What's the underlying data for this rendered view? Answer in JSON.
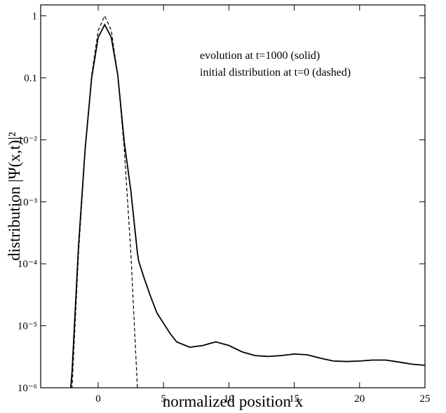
{
  "chart_data": {
    "type": "line",
    "xlabel": "normalized position x",
    "ylabel": "distribution |Ψ(x,t)|²",
    "annotations": [
      "evolution at t=1000 (solid)",
      "initial distribution at t=0 (dashed)"
    ],
    "log_y": true,
    "xlim": [
      -4.4,
      25
    ],
    "ylim": [
      1e-06,
      1.5
    ],
    "xticks": [
      0,
      5,
      10,
      15,
      20,
      25
    ],
    "yticks": [
      {
        "value": 1e-06,
        "label": "10⁻⁶"
      },
      {
        "value": 1e-05,
        "label": "10⁻⁵"
      },
      {
        "value": 0.0001,
        "label": "10⁻⁴"
      },
      {
        "value": 0.001,
        "label": "10⁻³"
      },
      {
        "value": 0.01,
        "label": "10⁻²"
      },
      0.1,
      1
    ],
    "x": [
      -2.1,
      -2,
      -1.5,
      -1,
      -0.5,
      0,
      0.5,
      1,
      1.5,
      2,
      2.5,
      3,
      3.1,
      3.5,
      4,
      4.5,
      5,
      5.5,
      6,
      7,
      8,
      9,
      10,
      11,
      12,
      13,
      14,
      15,
      16,
      17,
      18,
      19,
      20,
      21,
      22,
      23,
      24,
      25
    ],
    "series": [
      {
        "name": "evolution at t=1000",
        "color": "#000000",
        "dash": false,
        "values": [
          1e-06,
          1.8e-06,
          0.0002,
          0.007,
          0.1,
          0.45,
          0.72,
          0.45,
          0.11,
          0.009,
          0.0015,
          0.00015,
          0.00011,
          6e-05,
          3e-05,
          1.6e-05,
          1.1e-05,
          7.5e-06,
          5.5e-06,
          4.5e-06,
          4.8e-06,
          5.5e-06,
          4.8e-06,
          3.8e-06,
          3.3e-06,
          3.2e-06,
          3.3e-06,
          3.5e-06,
          3.4e-06,
          3e-06,
          2.7e-06,
          2.65e-06,
          2.7e-06,
          2.8e-06,
          2.8e-06,
          2.6e-06,
          2.4e-06,
          2.3e-06
        ]
      },
      {
        "name": "initial distribution at t=0",
        "color": "#000000",
        "dash": true,
        "values": [
          3.4e-07,
          1e-06,
          0.00015,
          0.0069,
          0.11,
          0.58,
          1,
          0.58,
          0.11,
          0.0069,
          0.00015,
          1e-06,
          3.4e-07,
          null,
          null,
          null,
          null,
          null,
          null,
          null,
          null,
          null,
          null,
          null,
          null,
          null,
          null,
          null,
          null,
          null,
          null,
          null,
          null,
          null,
          null,
          null,
          null,
          null
        ]
      }
    ]
  }
}
